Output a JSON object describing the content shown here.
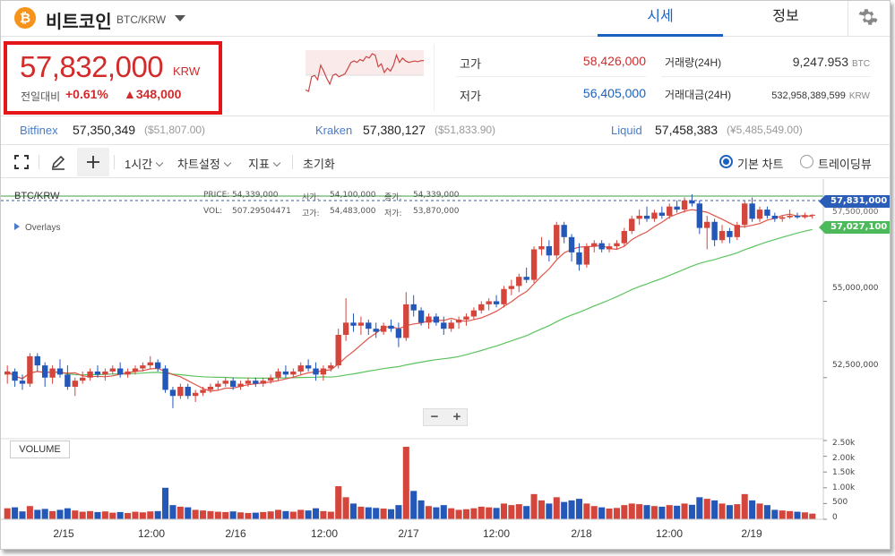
{
  "header": {
    "coin_symbol": "₿",
    "coin_name": "비트코인",
    "pair": "BTC/KRW",
    "tabs": [
      {
        "label": "시세"
      },
      {
        "label": "정보"
      }
    ],
    "icons": {
      "dropdown": "chevron-down-icon",
      "settings": "gear-icon"
    }
  },
  "ticker": {
    "price": "57,832,000",
    "unit": "KRW",
    "change_label": "전일대비",
    "change_pct": "+0.61%",
    "change_amount": "▲348,000",
    "high_label": "고가",
    "high_value": "58,426,000",
    "low_label": "저가",
    "low_value": "56,405,000",
    "volume_label": "거래량(24H)",
    "volume_value": "9,247.953",
    "volume_unit": "BTC",
    "turnover_label": "거래대금(24H)",
    "turnover_value": "532,958,389,599",
    "turnover_unit": "KRW",
    "colors": {
      "up": "#d12b2b",
      "down": "#1a62c1"
    }
  },
  "exchanges": [
    {
      "name": "Bitfinex",
      "price": "57,350,349",
      "usd": "($51,807.00)"
    },
    {
      "name": "Kraken",
      "price": "57,380,127",
      "usd": "($51,833.90)"
    },
    {
      "name": "Liquid",
      "price": "57,458,383",
      "usd": "(¥5,485,549.00)"
    }
  ],
  "toolbar": {
    "interval": "1시간",
    "chart_settings": "차트설정",
    "indicators": "지표",
    "reset": "초기화",
    "chart_basic": "기본 차트",
    "chart_tv": "트레이딩뷰",
    "icons": [
      "fullscreen-icon",
      "pencil-icon",
      "crosshair-icon"
    ]
  },
  "chart_info": {
    "title": "BTC/KRW",
    "price_label": "PRICE:",
    "price_value": "54,339,000",
    "open_label": "시가:",
    "open_value": "54,100,000",
    "close_label": "종가:",
    "close_value": "54,339,000",
    "vol_label": "VOL:",
    "vol_value": "507.29504471",
    "high_label": "고가:",
    "high_value": "54,483,000",
    "low_label": "저가:",
    "low_value": "53,870,000",
    "overlays": "Overlays",
    "volume_title": "VOLUME",
    "zoom_out": "−",
    "zoom_in": "+"
  },
  "price_tags": {
    "current": "57,831,000",
    "ma": "57,027,100",
    "hidden": "57,500,000"
  },
  "chart_data": {
    "type": "candlestick",
    "y_ticks": [
      "55,000,000",
      "52,500,000"
    ],
    "y_range": [
      50500000,
      59000000
    ],
    "vol_ticks": [
      "2.50k",
      "2.00k",
      "1.50k",
      "1.00k",
      "500",
      "0"
    ],
    "vol_range": [
      0,
      2500
    ],
    "x_ticks": [
      "2/15",
      "12:00",
      "2/16",
      "12:00",
      "2/17",
      "12:00",
      "2/18",
      "12:00",
      "2/19"
    ],
    "series_colors": {
      "up": "#d4453c",
      "down": "#2357b8",
      "ma_short": "#e0554a",
      "ma_long": "#5cc35e"
    },
    "candles": [
      [
        52600000,
        52900000,
        52300000,
        52700000,
        350
      ],
      [
        52700000,
        52800000,
        52200000,
        52400000,
        380
      ],
      [
        52400000,
        52600000,
        52100000,
        52300000,
        250
      ],
      [
        52300000,
        53300000,
        52200000,
        53200000,
        420
      ],
      [
        53200000,
        53300000,
        52700000,
        52900000,
        300
      ],
      [
        52900000,
        53000000,
        52200000,
        52500000,
        330
      ],
      [
        52500000,
        52900000,
        52300000,
        52800000,
        260
      ],
      [
        52800000,
        53100000,
        52500000,
        52600000,
        300
      ],
      [
        52600000,
        52900000,
        52100000,
        52200000,
        350
      ],
      [
        52200000,
        52500000,
        51900000,
        52400000,
        280
      ],
      [
        52400000,
        52700000,
        52300000,
        52500000,
        240
      ],
      [
        52500000,
        52800000,
        52400000,
        52700000,
        260
      ],
      [
        52700000,
        52900000,
        52500000,
        52600000,
        230
      ],
      [
        52600000,
        52800000,
        52400000,
        52700000,
        250
      ],
      [
        52700000,
        52900000,
        52600000,
        52800000,
        210
      ],
      [
        52800000,
        53000000,
        52500000,
        52600000,
        230
      ],
      [
        52600000,
        52800000,
        52500000,
        52700000,
        200
      ],
      [
        52700000,
        52900000,
        52600000,
        52800000,
        240
      ],
      [
        52800000,
        53000000,
        52700000,
        52900000,
        220
      ],
      [
        52900000,
        53200000,
        52800000,
        53000000,
        250
      ],
      [
        53000000,
        53100000,
        52700000,
        52800000,
        260
      ],
      [
        52800000,
        52900000,
        52000000,
        52100000,
        1000
      ],
      [
        52100000,
        52200000,
        51500000,
        51900000,
        450
      ],
      [
        51900000,
        52300000,
        51800000,
        52200000,
        400
      ],
      [
        52200000,
        52300000,
        51800000,
        51900000,
        380
      ],
      [
        51900000,
        52100000,
        51700000,
        52000000,
        300
      ],
      [
        52000000,
        52200000,
        51900000,
        52100000,
        280
      ],
      [
        52100000,
        52300000,
        52000000,
        52200000,
        260
      ],
      [
        52200000,
        52400000,
        52100000,
        52300000,
        240
      ],
      [
        52300000,
        52500000,
        52200000,
        52400000,
        230
      ],
      [
        52400000,
        52500000,
        52100000,
        52200000,
        250
      ],
      [
        52200000,
        52400000,
        52100000,
        52300000,
        220
      ],
      [
        52300000,
        52500000,
        52200000,
        52400000,
        200
      ],
      [
        52400000,
        52500000,
        52200000,
        52300000,
        210
      ],
      [
        52300000,
        52500000,
        52200000,
        52400000,
        230
      ],
      [
        52400000,
        52600000,
        52300000,
        52500000,
        250
      ],
      [
        52500000,
        52800000,
        52400000,
        52700000,
        300
      ],
      [
        52700000,
        52900000,
        52500000,
        52600000,
        260
      ],
      [
        52600000,
        52800000,
        52500000,
        52700000,
        240
      ],
      [
        52700000,
        53000000,
        52600000,
        52900000,
        300
      ],
      [
        52900000,
        53100000,
        52700000,
        52800000,
        280
      ],
      [
        52800000,
        53000000,
        52400000,
        52600000,
        350
      ],
      [
        52600000,
        52900000,
        52400000,
        52800000,
        260
      ],
      [
        52800000,
        53000000,
        52700000,
        52900000,
        240
      ],
      [
        52900000,
        54100000,
        52800000,
        53900000,
        1050
      ],
      [
        53900000,
        55100000,
        53700000,
        54300000,
        700
      ],
      [
        54300000,
        54600000,
        54000000,
        54200000,
        500
      ],
      [
        54200000,
        54500000,
        53900000,
        54300000,
        400
      ],
      [
        54300000,
        54400000,
        53900000,
        54100000,
        380
      ],
      [
        54100000,
        54300000,
        53800000,
        54000000,
        360
      ],
      [
        54000000,
        54300000,
        53900000,
        54200000,
        340
      ],
      [
        54200000,
        54400000,
        54000000,
        54100000,
        320
      ],
      [
        54100000,
        54300000,
        53500000,
        53800000,
        450
      ],
      [
        53800000,
        55300000,
        53700000,
        54900000,
        2300
      ],
      [
        54900000,
        55200000,
        54500000,
        54700000,
        900
      ],
      [
        54700000,
        54800000,
        54200000,
        54300000,
        600
      ],
      [
        54300000,
        54600000,
        54100000,
        54500000,
        420
      ],
      [
        54500000,
        54600000,
        54200000,
        54300000,
        380
      ],
      [
        54300000,
        54500000,
        53900000,
        54100000,
        450
      ],
      [
        54100000,
        54400000,
        54000000,
        54300000,
        350
      ],
      [
        54300000,
        54500000,
        54100000,
        54400000,
        300
      ],
      [
        54400000,
        54600000,
        54200000,
        54500000,
        320
      ],
      [
        54500000,
        54800000,
        54400000,
        54700000,
        350
      ],
      [
        54700000,
        55000000,
        54600000,
        54900000,
        400
      ],
      [
        54900000,
        55100000,
        54700000,
        55000000,
        380
      ],
      [
        55000000,
        55200000,
        54800000,
        54900000,
        360
      ],
      [
        54900000,
        55500000,
        54800000,
        55400000,
        500
      ],
      [
        55400000,
        55700000,
        55200000,
        55500000,
        450
      ],
      [
        55500000,
        55900000,
        55300000,
        55800000,
        480
      ],
      [
        55800000,
        56100000,
        55600000,
        55700000,
        420
      ],
      [
        55700000,
        56800000,
        55600000,
        56700000,
        800
      ],
      [
        56700000,
        57100000,
        56500000,
        56800000,
        600
      ],
      [
        56800000,
        57000000,
        56300000,
        56500000,
        500
      ],
      [
        56500000,
        57600000,
        56400000,
        57500000,
        700
      ],
      [
        57500000,
        57600000,
        56900000,
        57100000,
        550
      ],
      [
        57100000,
        57200000,
        56300000,
        56600000,
        600
      ],
      [
        56600000,
        56900000,
        56000000,
        56200000,
        650
      ],
      [
        56200000,
        56900000,
        56100000,
        56800000,
        500
      ],
      [
        56800000,
        57000000,
        56600000,
        56900000,
        420
      ],
      [
        56900000,
        57000000,
        56600000,
        56700000,
        380
      ],
      [
        56700000,
        56900000,
        56600000,
        56800000,
        340
      ],
      [
        56800000,
        57000000,
        56700000,
        56900000,
        360
      ],
      [
        56900000,
        57400000,
        56800000,
        57300000,
        450
      ],
      [
        57300000,
        57800000,
        57200000,
        57700000,
        500
      ],
      [
        57700000,
        58000000,
        57500000,
        57800000,
        480
      ],
      [
        57800000,
        58100000,
        57600000,
        57700000,
        450
      ],
      [
        57700000,
        58000000,
        57600000,
        57900000,
        420
      ],
      [
        57900000,
        58100000,
        57700000,
        57800000,
        400
      ],
      [
        57800000,
        58200000,
        57700000,
        58100000,
        450
      ],
      [
        58100000,
        58300000,
        57900000,
        58000000,
        430
      ],
      [
        58000000,
        58400000,
        57900000,
        58300000,
        500
      ],
      [
        58300000,
        58500000,
        58100000,
        58200000,
        460
      ],
      [
        58200000,
        58300000,
        57200000,
        57400000,
        700
      ],
      [
        57400000,
        57800000,
        56700000,
        57600000,
        650
      ],
      [
        57600000,
        57700000,
        56800000,
        57000000,
        600
      ],
      [
        57000000,
        57500000,
        56900000,
        57300000,
        500
      ],
      [
        57300000,
        57400000,
        56900000,
        57100000,
        450
      ],
      [
        57100000,
        57600000,
        57000000,
        57500000,
        480
      ],
      [
        57500000,
        58300000,
        57400000,
        58200000,
        800
      ],
      [
        58200000,
        58400000,
        57600000,
        57700000,
        600
      ],
      [
        57700000,
        58100000,
        57600000,
        58000000,
        500
      ],
      [
        58000000,
        58100000,
        57700000,
        57800000,
        450
      ],
      [
        57800000,
        57900000,
        57600000,
        57700000,
        300
      ],
      [
        57700000,
        57800000,
        57600000,
        57750000,
        280
      ],
      [
        57750000,
        58000000,
        57700000,
        57800000,
        260
      ],
      [
        57800000,
        57900000,
        57700000,
        57750000,
        240
      ],
      [
        57750000,
        57900000,
        57700000,
        57820000,
        220
      ],
      [
        57820000,
        57850000,
        57700000,
        57831000,
        180
      ]
    ]
  }
}
